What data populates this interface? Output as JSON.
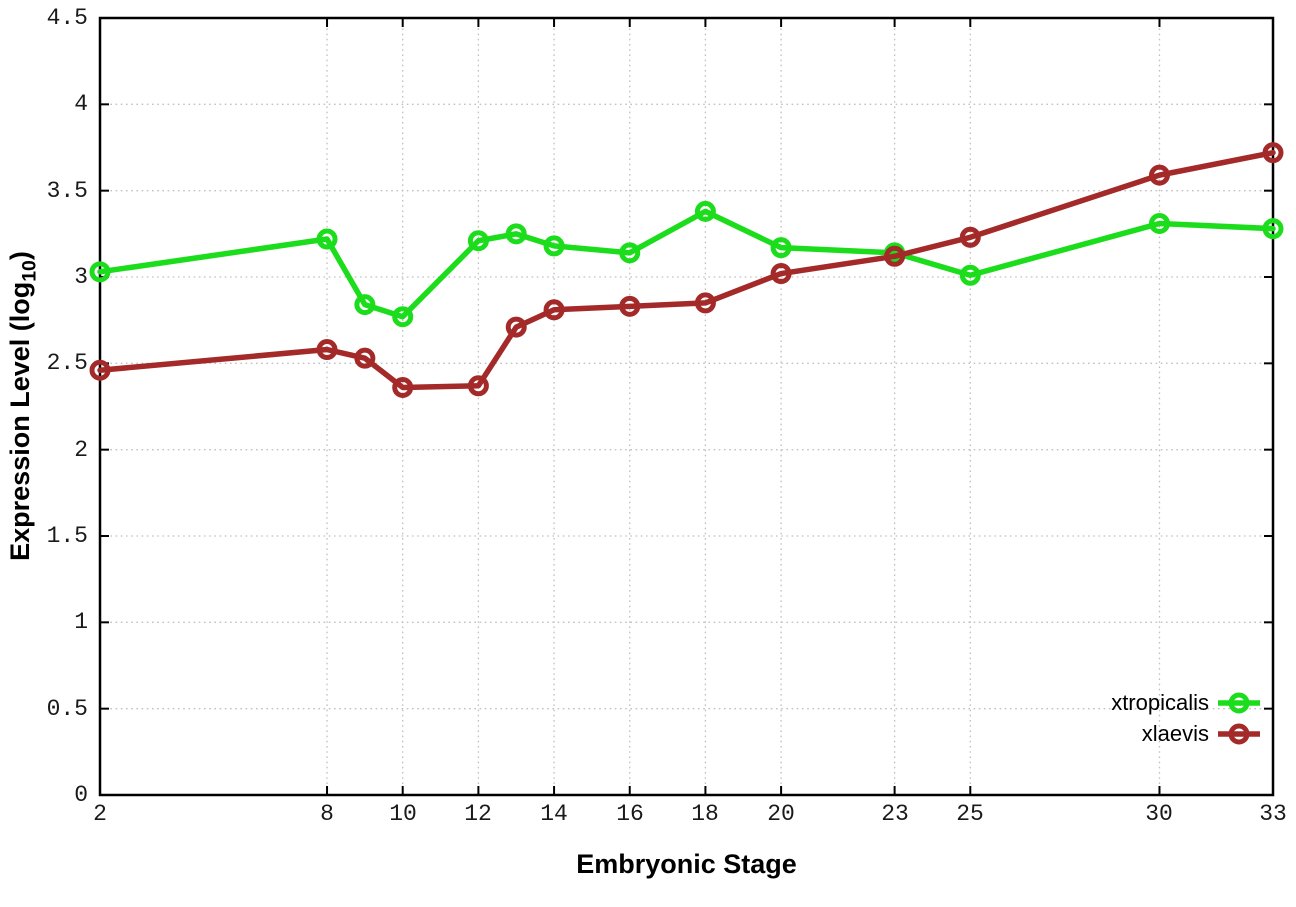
{
  "chart_data": {
    "type": "line",
    "title": "",
    "xlabel": "Embryonic Stage",
    "ylabel": "Expression Level (log10)",
    "ylabel_rich": {
      "prefix": "Expression Level (log",
      "sub": "10",
      "suffix": ")"
    },
    "x": [
      2,
      8,
      9,
      10,
      12,
      13,
      14,
      16,
      18,
      20,
      23,
      25,
      30,
      33
    ],
    "series": [
      {
        "name": "xtropicalis",
        "color": "#1bdd1b",
        "values": [
          3.03,
          3.22,
          2.84,
          2.77,
          3.21,
          3.25,
          3.18,
          3.14,
          3.38,
          3.17,
          3.14,
          3.01,
          3.31,
          3.28
        ]
      },
      {
        "name": "xlaevis",
        "color": "#a42a2a",
        "values": [
          2.46,
          2.58,
          2.53,
          2.36,
          2.37,
          2.71,
          2.81,
          2.83,
          2.85,
          3.02,
          3.12,
          3.23,
          3.59,
          3.72
        ]
      }
    ],
    "xlim": [
      2,
      33
    ],
    "ylim": [
      0,
      4.5
    ],
    "xticks": [
      2,
      8,
      10,
      12,
      14,
      16,
      18,
      20,
      23,
      25,
      30,
      33
    ],
    "yticks": [
      0,
      0.5,
      1,
      1.5,
      2,
      2.5,
      3,
      3.5,
      4,
      4.5
    ],
    "grid": true,
    "legend_position": "inside-bottom-right",
    "marker": "open-circle",
    "background_color": "#ffffff",
    "grid_color": "#c0c0c0",
    "frame_color": "#000000"
  }
}
